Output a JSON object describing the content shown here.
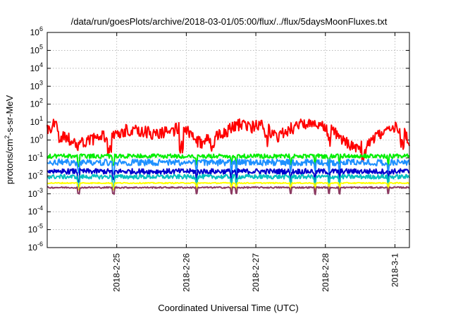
{
  "chart_data": {
    "type": "line",
    "title": "/data/run/goesPlots/archive/2018-03-01/05:00/flux/../flux/5daysMoonFluxes.txt",
    "xlabel": "Coordinated Universal Time (UTC)",
    "ylabel": {
      "main": "protons/cm",
      "superscript": "2",
      "rest": "-s-sr-MeV"
    },
    "yscale": "log",
    "ylim_exponent": [
      -6,
      6
    ],
    "y_ticks": [
      {
        "base": "10",
        "exp": "-6"
      },
      {
        "base": "10",
        "exp": "-5"
      },
      {
        "base": "10",
        "exp": "-4"
      },
      {
        "base": "10",
        "exp": "-3"
      },
      {
        "base": "10",
        "exp": "-2"
      },
      {
        "base": "10",
        "exp": "-1"
      },
      {
        "base": "10",
        "exp": "0"
      },
      {
        "base": "10",
        "exp": "1"
      },
      {
        "base": "10",
        "exp": "2"
      },
      {
        "base": "10",
        "exp": "3"
      },
      {
        "base": "10",
        "exp": "4"
      },
      {
        "base": "10",
        "exp": "5"
      },
      {
        "base": "10",
        "exp": "6"
      }
    ],
    "xlim": [
      "2018-02-24 00:00",
      "2018-03-01 05:00"
    ],
    "x_ticks": [
      {
        "label": "2018-2-25",
        "date": "2018-02-25 00:00"
      },
      {
        "label": "2018-2-26",
        "date": "2018-02-26 00:00"
      },
      {
        "label": "2018-2-27",
        "date": "2018-02-27 00:00"
      },
      {
        "label": "2018-2-28",
        "date": "2018-02-28 00:00"
      },
      {
        "label": "2018-3-1",
        "date": "2018-03-01 00:00"
      }
    ],
    "grid": true,
    "series": [
      {
        "color": "#ff0000",
        "log10_base": 0.5,
        "amp": 0.35,
        "dips": [
          [
            0.2,
            -0.6
          ],
          [
            0.9,
            -0.8
          ],
          [
            1.93,
            -1.1
          ],
          [
            2.38,
            -0.6
          ],
          [
            3.15,
            -0.7
          ],
          [
            4.05,
            -0.7
          ],
          [
            4.55,
            -0.6
          ],
          [
            5.1,
            -0.8
          ]
        ],
        "anchors": [
          [
            0,
            0.6
          ],
          [
            0.1,
            0.9
          ],
          [
            0.25,
            0.3
          ],
          [
            0.4,
            -0.3
          ],
          [
            0.8,
            0.2
          ],
          [
            1.2,
            0.6
          ],
          [
            1.6,
            0.3
          ],
          [
            1.95,
            0.7
          ],
          [
            2.2,
            -0.2
          ],
          [
            2.5,
            0.3
          ],
          [
            2.75,
            0.85
          ],
          [
            2.95,
            0.7
          ],
          [
            3.1,
            0.85
          ],
          [
            3.3,
            0.2
          ],
          [
            3.6,
            0.8
          ],
          [
            3.85,
            1.0
          ],
          [
            4.1,
            0.6
          ],
          [
            4.3,
            -0.2
          ],
          [
            4.5,
            -0.4
          ],
          [
            4.75,
            0.2
          ],
          [
            5.0,
            0.7
          ],
          [
            5.15,
            0.4
          ],
          [
            5.2,
            -0.4
          ]
        ]
      },
      {
        "color": "#00ee00",
        "log10_base": -0.9,
        "amp": 0.12,
        "dips": [],
        "anchors": []
      },
      {
        "color": "#1e90ff",
        "log10_base": -1.25,
        "amp": 0.18,
        "dips": [],
        "anchors": []
      },
      {
        "color": "#0000cd",
        "log10_base": -1.75,
        "amp": 0.15,
        "dips": [],
        "anchors": []
      },
      {
        "color": "#00c0c0",
        "log10_base": -2.05,
        "amp": 0.12,
        "dips": [],
        "anchors": []
      },
      {
        "color": "#ffff00",
        "log10_base": -2.4,
        "amp": 0.03,
        "dips": [],
        "anchors": []
      },
      {
        "color": "#8b3a62",
        "log10_base": -2.65,
        "amp": 0.04,
        "dips": [],
        "anchors": []
      }
    ],
    "spike_days": [
      0.45,
      0.95,
      2.15,
      2.65,
      2.72,
      3.5,
      3.85,
      4.05,
      4.2,
      4.9
    ]
  }
}
